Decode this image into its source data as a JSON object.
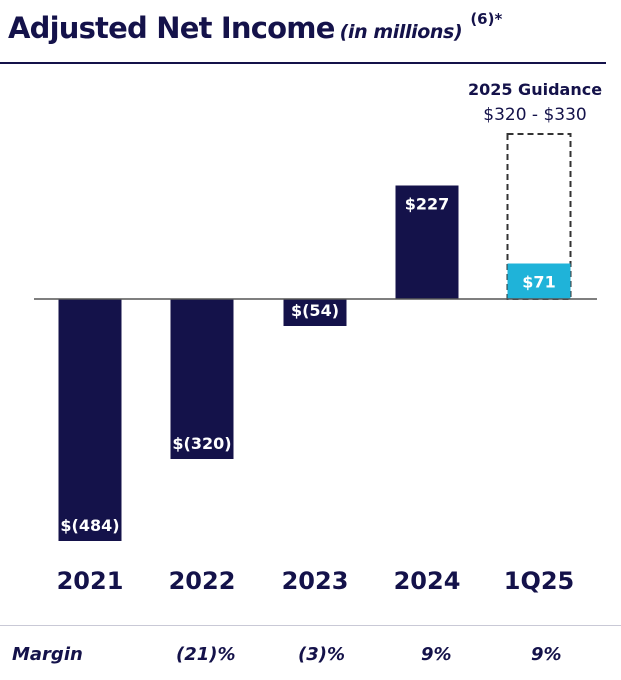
{
  "title": {
    "main": "Adjusted Net Income",
    "sub": "(in millions)",
    "sup": "(6)*"
  },
  "colors": {
    "navy": "#14124a",
    "accent": "#1fb3d9",
    "guidance_border": "#333333",
    "axis": "#555555"
  },
  "chart_data": {
    "type": "bar",
    "categories": [
      "2021",
      "2022",
      "2023",
      "2024",
      "1Q25"
    ],
    "values": [
      -484,
      -320,
      -54,
      227,
      71
    ],
    "value_labels": [
      "$(484)",
      "$(320)",
      "$(54)",
      "$227",
      "$71"
    ],
    "bar_colors": [
      "#14124a",
      "#14124a",
      "#14124a",
      "#14124a",
      "#1fb3d9"
    ],
    "guidance": {
      "category": "1Q25",
      "title": "2025 Guidance",
      "range_label": "$320 - $330",
      "low": 320,
      "high": 330
    },
    "ylim": [
      -500,
      330
    ]
  },
  "margin": {
    "label": "Margin",
    "values": [
      "(21)%",
      "(3)%",
      "9%",
      "9%"
    ]
  }
}
